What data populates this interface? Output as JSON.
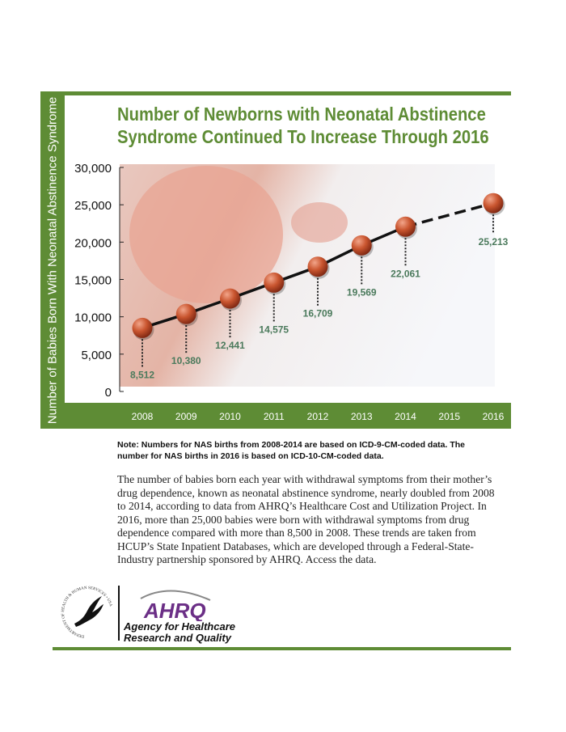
{
  "chart_data": {
    "type": "line",
    "title": "Number of Newborns with Neonatal Abstinence Syndrome Continued To Increase Through 2016",
    "ylabel": "Number of Babies Born With Neonatal Abstinence Syndrome",
    "xlabel": "",
    "categories": [
      "2008",
      "2009",
      "2010",
      "2011",
      "2012",
      "2013",
      "2014",
      "2015",
      "2016"
    ],
    "values": [
      8512,
      10380,
      12441,
      14575,
      16709,
      19569,
      22061,
      null,
      25213
    ],
    "data_labels": [
      "8,512",
      "10,380",
      "12,441",
      "14,575",
      "16,709",
      "19,569",
      "22,061",
      "",
      "25,213"
    ],
    "yticks": [
      "0",
      "5,000",
      "10,000",
      "15,000",
      "20,000",
      "25,000",
      "30,000"
    ],
    "ylim": [
      0,
      30000
    ],
    "line_style": "solid 2008-2014, dashed 2014-2016",
    "grid": false,
    "colors": {
      "band": "#5e8c35",
      "label": "#4b7a5c",
      "marker": "#c0502e"
    }
  },
  "note": "Note: Numbers for NAS births from 2008-2014 are based on ICD-9-CM-coded data. The number for NAS births in 2016 is based on ICD-10-CM-coded data.",
  "body": "The number of babies born each year with withdrawal symptoms from their mother’s drug dependence, known as neonatal abstinence syndrome, nearly doubled from 2008 to 2014, according to data from AHRQ’s Healthcare Cost and Utilization Project. In 2016, more than 25,000 babies were born with withdrawal symptoms from drug dependence compared with more than 8,500 in 2008. These trends are taken from HCUP’s State Inpatient Databases, which are developed through a Federal-State-Industry partnership sponsored by AHRQ. Access the data.",
  "footer": {
    "hhs_seal_text": "DEPARTMENT OF HEALTH & HUMAN SERVICES • USA",
    "ahrq_logo": "AHRQ",
    "agency_line1": "Agency for Healthcare",
    "agency_line2": "Research and Quality"
  }
}
